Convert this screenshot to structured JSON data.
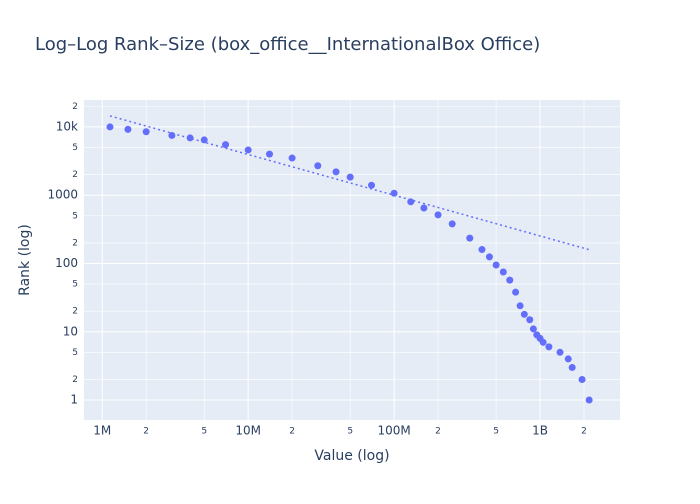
{
  "chart_data": {
    "type": "scatter",
    "title": "Log–Log Rank–Size (box_office__InternationalBox Office)",
    "x_label": "Value (log)",
    "y_label": "Rank (log)",
    "xscale": "log",
    "yscale": "log",
    "grid": true,
    "xlim": [
      750000,
      3530000000
    ],
    "ylim": [
      0.51,
      24800
    ],
    "xticks": [
      {
        "value": 1000000,
        "label": "1M"
      },
      {
        "value": 2000000,
        "label": "2"
      },
      {
        "value": 5000000,
        "label": "5"
      },
      {
        "value": 10000000,
        "label": "10M"
      },
      {
        "value": 20000000,
        "label": "2"
      },
      {
        "value": 50000000,
        "label": "5"
      },
      {
        "value": 100000000,
        "label": "100M"
      },
      {
        "value": 200000000,
        "label": "2"
      },
      {
        "value": 500000000,
        "label": "5"
      },
      {
        "value": 1000000000,
        "label": "1B"
      },
      {
        "value": 2000000000,
        "label": "2"
      }
    ],
    "yticks": [
      1,
      2,
      5,
      10,
      {
        "value": 20,
        "label": "2"
      },
      {
        "value": 50,
        "label": "5"
      },
      100,
      {
        "value": 200,
        "label": "2"
      },
      {
        "value": 500,
        "label": "5"
      },
      1000,
      {
        "value": 2000,
        "label": "2"
      },
      {
        "value": 5000,
        "label": "5"
      },
      {
        "value": 10000,
        "label": "10k"
      },
      {
        "value": 20000,
        "label": "2"
      }
    ],
    "series": [
      {
        "mode": "markers",
        "color": "#636efa",
        "x": [
          1130000,
          1500000,
          2000000,
          3000000,
          4000000,
          5000000,
          7000000,
          10000000,
          14000000,
          20000000,
          30000000,
          40000000,
          50000000,
          70000000,
          100000000,
          130000000,
          160000000,
          200000000,
          250000000,
          330000000,
          400000000,
          450000000,
          500000000,
          560000000,
          620000000,
          680000000,
          730000000,
          780000000,
          850000000,
          900000000,
          950000000,
          1000000000,
          1050000000,
          1150000000,
          1370000000,
          1560000000,
          1660000000,
          1940000000,
          2170000000
        ],
        "values": [
          10000,
          9200,
          8500,
          7500,
          6900,
          6450,
          5500,
          4600,
          4000,
          3500,
          2700,
          2200,
          1840,
          1400,
          1070,
          800,
          650,
          515,
          380,
          235,
          160,
          125,
          95,
          75,
          57,
          38,
          24,
          18,
          15,
          11,
          9,
          8,
          7,
          6,
          5,
          4,
          3,
          2,
          1
        ]
      },
      {
        "mode": "lines",
        "dash": "dot",
        "color": "#636efa",
        "x": [
          1130000,
          2200000000
        ],
        "values": [
          14500,
          158
        ]
      }
    ]
  }
}
